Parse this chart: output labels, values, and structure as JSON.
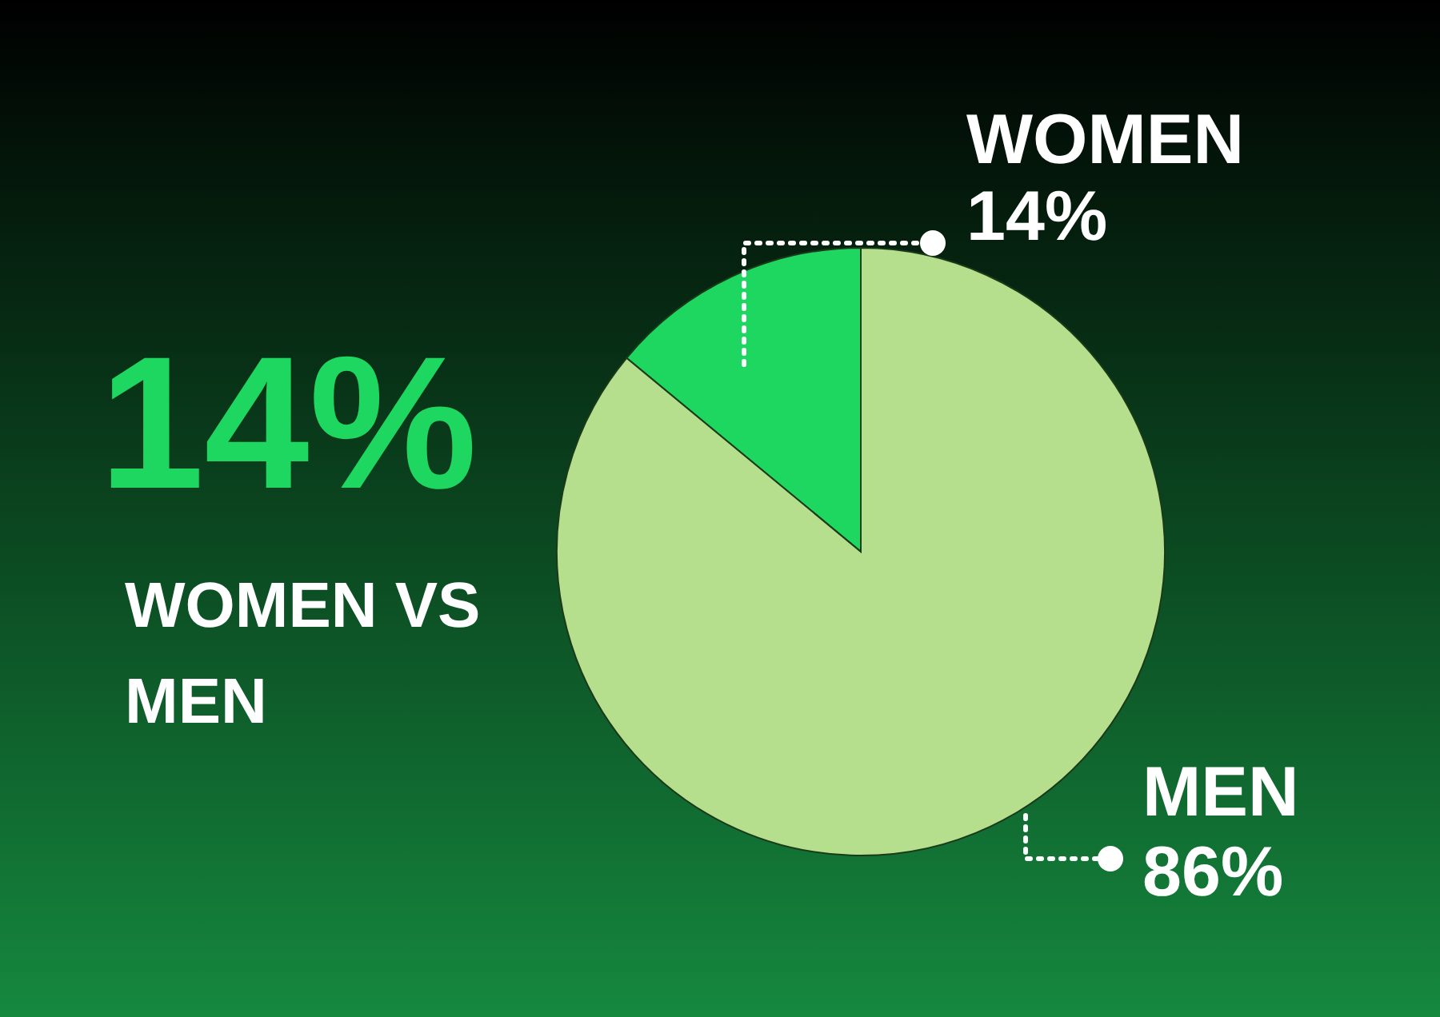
{
  "chart_data": {
    "type": "pie",
    "title": "14%",
    "subtitle": "WOMEN VS MEN",
    "categories": [
      "WOMEN",
      "MEN"
    ],
    "values": [
      14,
      86
    ],
    "colors": [
      "#1ed760",
      "#b5df8c"
    ],
    "value_labels": [
      "14%",
      "86%"
    ]
  }
}
